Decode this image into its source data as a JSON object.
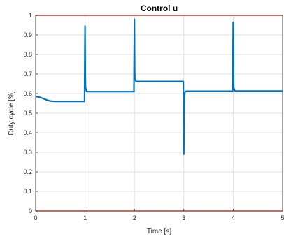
{
  "chart_data": {
    "type": "line",
    "title": "Control u",
    "xlabel": "Time [s]",
    "ylabel": "Duty cycle [%]",
    "xlim": [
      0,
      5
    ],
    "ylim": [
      0,
      1
    ],
    "grid": true,
    "xticks": [
      "0",
      "1",
      "2",
      "3",
      "4",
      "5"
    ],
    "yticks": [
      "0",
      "0.1",
      "0.2",
      "0.3",
      "0.4",
      "0.5",
      "0.6",
      "0.7",
      "0.8",
      "0.9",
      "1"
    ],
    "reference_lines": {
      "y_values": [
        0,
        1
      ],
      "color": "#c0392b"
    },
    "series": [
      {
        "color": "#0072bd",
        "x": [
          0,
          0.05,
          0.1,
          0.15,
          0.2,
          0.25,
          0.3,
          0.35,
          0.4,
          0.6,
          0.8,
          0.99,
          1.0,
          1.005,
          1.01,
          1.03,
          1.05,
          1.2,
          1.5,
          1.99,
          2.0,
          2.005,
          2.01,
          2.03,
          2.05,
          2.2,
          2.5,
          2.99,
          3.0,
          3.005,
          3.01,
          3.02,
          3.03,
          3.05,
          3.2,
          3.5,
          3.99,
          4.0,
          4.005,
          4.01,
          4.03,
          4.05,
          4.2,
          4.5,
          5.0
        ],
        "y": [
          0.585,
          0.583,
          0.58,
          0.575,
          0.57,
          0.565,
          0.562,
          0.561,
          0.56,
          0.56,
          0.56,
          0.56,
          0.945,
          0.7,
          0.63,
          0.612,
          0.61,
          0.61,
          0.61,
          0.61,
          0.98,
          0.72,
          0.68,
          0.663,
          0.662,
          0.662,
          0.662,
          0.662,
          0.29,
          0.55,
          0.59,
          0.605,
          0.61,
          0.612,
          0.612,
          0.612,
          0.612,
          0.965,
          0.7,
          0.63,
          0.615,
          0.613,
          0.613,
          0.613,
          0.613
        ]
      }
    ]
  }
}
